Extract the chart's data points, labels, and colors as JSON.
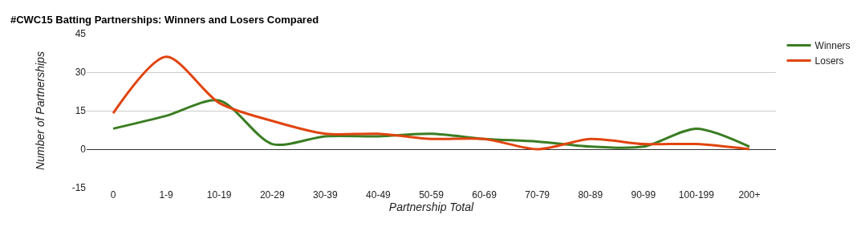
{
  "chart_data": {
    "type": "line",
    "title": "#CWC15 Batting Partnerships: Winners and Losers Compared",
    "xlabel": "Partnership Total",
    "ylabel": "Number of Partnerships",
    "categories": [
      "0",
      "1-9",
      "10-19",
      "20-29",
      "30-39",
      "40-49",
      "50-59",
      "60-69",
      "70-79",
      "80-89",
      "90-99",
      "100-199",
      "200+"
    ],
    "series": [
      {
        "name": "Winners",
        "color": "#3a7d22",
        "values": [
          8,
          13,
          19,
          2,
          5,
          5,
          6,
          4,
          3,
          1,
          1,
          8,
          1
        ]
      },
      {
        "name": "Losers",
        "color": "#e0440e",
        "values": [
          14,
          36,
          18,
          11,
          6,
          6,
          4,
          4,
          0,
          4,
          2,
          2,
          0
        ]
      }
    ],
    "ylim": [
      -15,
      45
    ],
    "yticks": [
      -15,
      0,
      15,
      30,
      45
    ],
    "grid": "y",
    "legend": "top right",
    "marker": "none",
    "line_style": "solid"
  }
}
